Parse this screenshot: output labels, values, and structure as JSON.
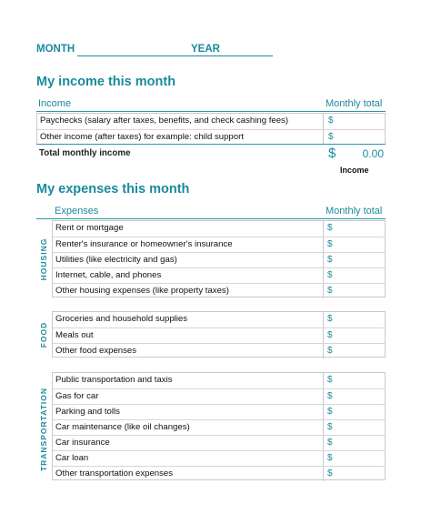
{
  "header": {
    "month_label": "MONTH",
    "year_label": "YEAR"
  },
  "income": {
    "title": "My income this month",
    "col_left": "Income",
    "col_right": "Monthly total",
    "rows": [
      {
        "label": "Paychecks (salary after taxes, benefits, and check cashing fees)",
        "currency": "$"
      },
      {
        "label": "Other income (after taxes) for example: child support",
        "currency": "$"
      }
    ],
    "total_label": "Total monthly income",
    "total_currency": "$",
    "total_value": "0.00",
    "total_caption": "Income"
  },
  "expenses": {
    "title": "My expenses this month",
    "col_left": "Expenses",
    "col_right": "Monthly total",
    "groups": [
      {
        "name": "HOUSING",
        "rows": [
          {
            "label": "Rent or mortgage",
            "currency": "$"
          },
          {
            "label": "Renter's insurance or homeowner's insurance",
            "currency": "$"
          },
          {
            "label": "Utilities (like electricity and gas)",
            "currency": "$"
          },
          {
            "label": "Internet, cable, and phones",
            "currency": "$"
          },
          {
            "label": "Other housing expenses (like property taxes)",
            "currency": "$"
          }
        ]
      },
      {
        "name": "FOOD",
        "rows": [
          {
            "label": "Groceries and household supplies",
            "currency": "$"
          },
          {
            "label": "Meals out",
            "currency": "$"
          },
          {
            "label": "Other food expenses",
            "currency": "$"
          }
        ]
      },
      {
        "name": "TRANSPORTATION",
        "rows": [
          {
            "label": "Public transportation and taxis",
            "currency": "$"
          },
          {
            "label": "Gas for car",
            "currency": "$"
          },
          {
            "label": "Parking and tolls",
            "currency": "$"
          },
          {
            "label": "Car maintenance (like oil changes)",
            "currency": "$"
          },
          {
            "label": "Car insurance",
            "currency": "$"
          },
          {
            "label": "Car loan",
            "currency": "$"
          },
          {
            "label": "Other transportation expenses",
            "currency": "$"
          }
        ]
      }
    ]
  },
  "colors": {
    "accent": "#1a8a9c"
  }
}
